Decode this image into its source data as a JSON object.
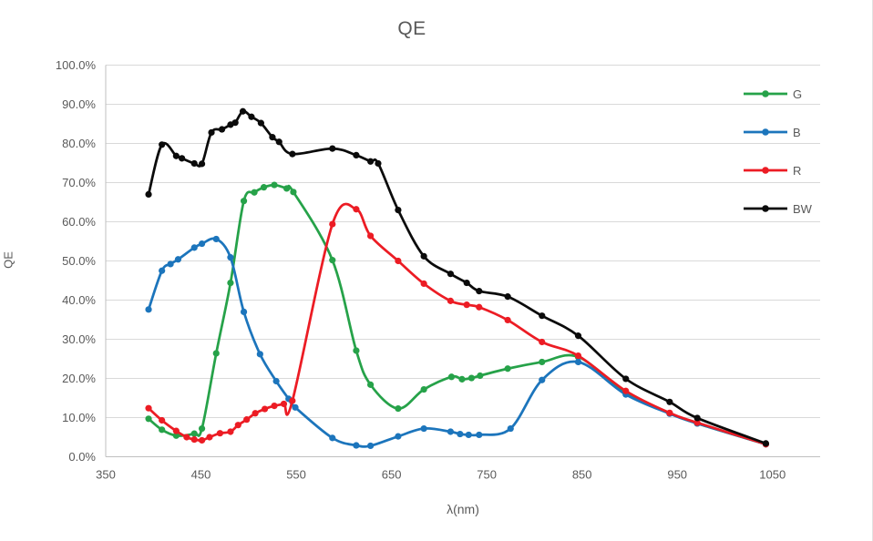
{
  "title": "QE",
  "axis_titles": {
    "x": "λ(nm)",
    "y": "QE"
  },
  "colors": {
    "green": "#26A249",
    "blue": "#1C75BC",
    "red": "#EC1C24",
    "black": "#0B0B0B",
    "gridline": "#D9D9D9",
    "axis_line": "#BFBFBF",
    "text": "#595959"
  },
  "legend": [
    {
      "label": "G",
      "color": "#26A249"
    },
    {
      "label": "B",
      "color": "#1C75BC"
    },
    {
      "label": "R",
      "color": "#EC1C24"
    },
    {
      "label": "BW",
      "color": "#0B0B0B"
    }
  ],
  "chart_data": {
    "type": "line",
    "subtype": "smooth_lines_with_markers",
    "title": "QE",
    "xlabel": "λ(nm)",
    "ylabel": "QE",
    "y_unit": "percent",
    "xlim": [
      350,
      1100
    ],
    "ylim_percent": [
      0,
      100
    ],
    "x_ticks": [
      350,
      450,
      550,
      650,
      750,
      850,
      950,
      1050
    ],
    "y_ticks_percent": [
      0,
      10,
      20,
      30,
      40,
      50,
      60,
      70,
      80,
      90,
      100
    ],
    "y_tick_labels": [
      "0.0%",
      "10.0%",
      "20.0%",
      "30.0%",
      "40.0%",
      "50.0%",
      "60.0%",
      "70.0%",
      "80.0%",
      "90.0%",
      "100.0%"
    ],
    "grid": true,
    "legend_position": "right-inside",
    "series": [
      {
        "name": "G",
        "color": "#26A249",
        "x": [
          395,
          409,
          424,
          443,
          451,
          466,
          481,
          495,
          506,
          516,
          527,
          540,
          547,
          588,
          613,
          628,
          657,
          684,
          713,
          724,
          734,
          743,
          772,
          808,
          846,
          896,
          942,
          971,
          1043
        ],
        "y": [
          9.7,
          6.9,
          5.4,
          5.9,
          7.2,
          26.4,
          44.4,
          65.3,
          67.5,
          68.8,
          69.4,
          68.5,
          67.6,
          50.2,
          27.1,
          18.4,
          12.3,
          17.2,
          20.4,
          19.8,
          20.1,
          20.7,
          22.5,
          24.2,
          25.5,
          16.2,
          11.1,
          8.5,
          3.2
        ]
      },
      {
        "name": "B",
        "color": "#1C75BC",
        "x": [
          395,
          409,
          418,
          426,
          443,
          451,
          466,
          481,
          495,
          512,
          529,
          542,
          549,
          588,
          613,
          628,
          657,
          684,
          712,
          722,
          731,
          742,
          775,
          808,
          846,
          896,
          942,
          971,
          1043
        ],
        "y": [
          37.6,
          47.5,
          49.2,
          50.4,
          53.4,
          54.4,
          55.6,
          50.9,
          37.0,
          26.2,
          19.3,
          14.8,
          12.6,
          4.8,
          2.9,
          2.8,
          5.2,
          7.2,
          6.4,
          5.8,
          5.6,
          5.6,
          7.2,
          19.6,
          24.2,
          15.9,
          11.0,
          8.5,
          3.2
        ]
      },
      {
        "name": "R",
        "color": "#EC1C24",
        "x": [
          395,
          409,
          424,
          435,
          443,
          451,
          459,
          470,
          481,
          489,
          498,
          507,
          517,
          527,
          537,
          546,
          588,
          613,
          628,
          657,
          684,
          712,
          729,
          742,
          772,
          808,
          846,
          896,
          942,
          971,
          1043
        ],
        "y": [
          12.4,
          9.3,
          6.6,
          5.0,
          4.4,
          4.2,
          5.0,
          6.0,
          6.4,
          8.1,
          9.5,
          11.1,
          12.2,
          13.0,
          13.5,
          14.3,
          59.4,
          63.2,
          56.4,
          50.0,
          44.2,
          39.8,
          38.8,
          38.2,
          34.9,
          29.3,
          25.8,
          16.8,
          11.2,
          8.7,
          3.2
        ]
      },
      {
        "name": "BW",
        "color": "#0B0B0B",
        "x": [
          395,
          409,
          424,
          430,
          443,
          451,
          461,
          472,
          481,
          486,
          494,
          503,
          513,
          525,
          532,
          546,
          588,
          613,
          628,
          636,
          657,
          684,
          712,
          729,
          742,
          772,
          808,
          846,
          896,
          942,
          971,
          1043
        ],
        "y": [
          67.0,
          79.7,
          76.8,
          76.2,
          74.9,
          74.8,
          82.8,
          83.6,
          84.8,
          85.3,
          88.2,
          86.8,
          85.2,
          81.6,
          80.4,
          77.3,
          78.7,
          77.0,
          75.4,
          74.9,
          63.0,
          51.2,
          46.7,
          44.4,
          42.3,
          40.9,
          36.0,
          30.9,
          19.9,
          14.0,
          9.9,
          3.4
        ]
      }
    ]
  }
}
